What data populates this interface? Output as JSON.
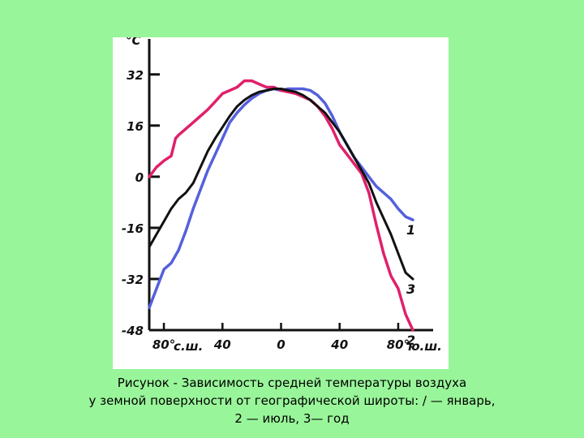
{
  "caption": {
    "line1": "Рисунок - Зависимость средней температуры воздуха",
    "line2": "у земной поверхности от географической широты: / — январь,",
    "line3": "2 — июль, 3— год"
  },
  "colors": {
    "background": "#99f59a",
    "january": "#5560dd",
    "july": "#e0206a",
    "year": "#111111"
  },
  "chart_data": {
    "type": "line",
    "y_unit": "°C",
    "ylim": [
      -48,
      36
    ],
    "xlim": [
      -90,
      90
    ],
    "y_ticks": [
      {
        "value": 32,
        "label": "32"
      },
      {
        "value": 16,
        "label": "16"
      },
      {
        "value": 0,
        "label": "0"
      },
      {
        "value": -16,
        "label": "-16"
      },
      {
        "value": -32,
        "label": "-32"
      },
      {
        "value": -48,
        "label": "-48"
      }
    ],
    "x_ticks": [
      {
        "value": -80,
        "label": "80°"
      },
      {
        "value": -40,
        "label": "40"
      },
      {
        "value": 0,
        "label": "0"
      },
      {
        "value": 40,
        "label": "40"
      },
      {
        "value": 80,
        "label": "80°"
      }
    ],
    "x_hemisphere_labels": [
      {
        "value": -80,
        "label": "с.ш."
      },
      {
        "value": 80,
        "label": "ю.ш."
      }
    ],
    "grid": false,
    "legend": "numbers at right end of curves",
    "series": [
      {
        "label": "1",
        "color": "#5560dd",
        "x": [
          -90,
          -85,
          -80,
          -75,
          -70,
          -65,
          -60,
          -55,
          -50,
          -45,
          -40,
          -35,
          -30,
          -25,
          -20,
          -15,
          -10,
          -5,
          0,
          5,
          10,
          15,
          20,
          25,
          30,
          35,
          40,
          45,
          50,
          55,
          60,
          65,
          70,
          75,
          80,
          85,
          90
        ],
        "y": [
          -41,
          -35,
          -29,
          -27,
          -23,
          -17,
          -10,
          -4,
          2,
          7,
          12,
          17,
          20,
          22.5,
          24.5,
          26,
          27,
          27.5,
          27,
          27.5,
          27.5,
          27.5,
          27,
          25.5,
          23,
          19,
          14,
          10,
          6,
          3,
          0,
          -3,
          -5,
          -7,
          -10,
          -12.5,
          -13.5
        ]
      },
      {
        "label": "2",
        "color": "#e0206a",
        "x": [
          -90,
          -85,
          -80,
          -75,
          -72,
          -70,
          -65,
          -60,
          -55,
          -50,
          -45,
          -40,
          -35,
          -30,
          -25,
          -20,
          -15,
          -10,
          -5,
          0,
          5,
          10,
          15,
          20,
          25,
          30,
          35,
          40,
          45,
          50,
          55,
          60,
          65,
          70,
          75,
          80,
          85,
          90
        ],
        "y": [
          0,
          3,
          5,
          6.5,
          12,
          13,
          15,
          17,
          19,
          21,
          23.5,
          26,
          27,
          28,
          30,
          30,
          29,
          28,
          28,
          27,
          26.5,
          26,
          25,
          24,
          22,
          19,
          15,
          10,
          7,
          4,
          1,
          -5,
          -15,
          -24,
          -31,
          -35,
          -43,
          -48
        ]
      },
      {
        "label": "3",
        "color": "#111111",
        "x": [
          -90,
          -85,
          -80,
          -75,
          -70,
          -65,
          -60,
          -55,
          -50,
          -45,
          -40,
          -35,
          -30,
          -25,
          -20,
          -15,
          -10,
          -5,
          0,
          5,
          10,
          15,
          20,
          25,
          30,
          35,
          40,
          45,
          50,
          55,
          60,
          65,
          70,
          75,
          80,
          85,
          90
        ],
        "y": [
          -22,
          -18,
          -14,
          -10,
          -7,
          -5,
          -2,
          3,
          8,
          12,
          15.5,
          19,
          22,
          24,
          25.5,
          26.5,
          27,
          27.5,
          27.5,
          27,
          26.5,
          25.5,
          24,
          22,
          20,
          17,
          14,
          10,
          6,
          2,
          -2,
          -8,
          -13,
          -18,
          -24,
          -30,
          -32
        ]
      }
    ]
  }
}
